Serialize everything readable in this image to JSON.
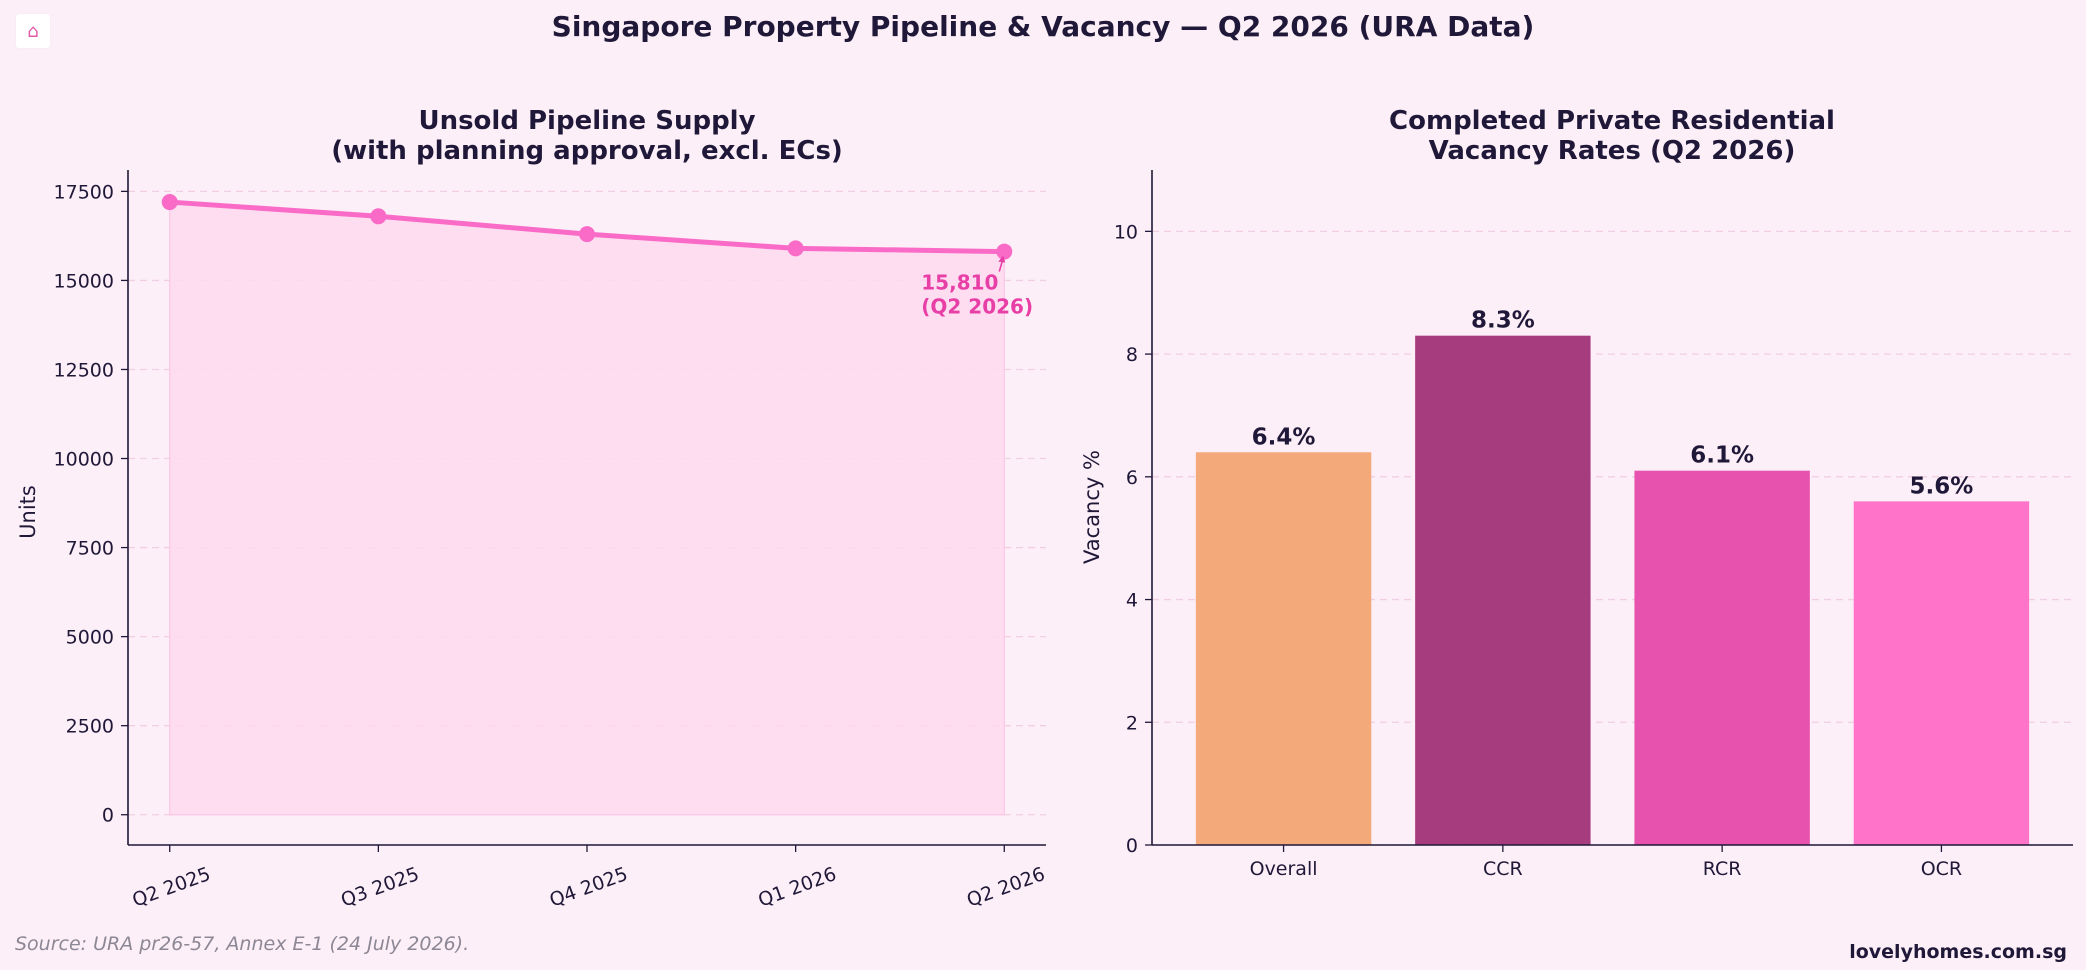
{
  "header": {
    "title": "Singapore Property Pipeline & Vacancy — Q2 2026 (URA Data)",
    "home_icon": "⌂"
  },
  "footer": {
    "source": "Source: URA pr26-57, Annex E-1 (24 July 2026).",
    "brand": "lovelyhomes.com.sg"
  },
  "colors": {
    "line": "#f96bc7",
    "fill": "#ffd9f0",
    "annotation": "#e83fa6",
    "grid": "#f0cfe3",
    "axis": "#1f1838"
  },
  "chart_data": [
    {
      "type": "area",
      "title_lines": [
        "Unsold Pipeline Supply",
        "(with planning approval, excl. ECs)"
      ],
      "xlabel": "",
      "ylabel": "Units",
      "categories": [
        "Q2 2025",
        "Q3 2025",
        "Q4 2025",
        "Q1 2026",
        "Q2 2026"
      ],
      "values": [
        17200,
        16800,
        16300,
        15900,
        15810
      ],
      "ylim": [
        -850,
        18100
      ],
      "yticks": [
        0,
        2500,
        5000,
        7500,
        10000,
        12500,
        15000,
        17500
      ],
      "grid": true,
      "annotation": {
        "lines": [
          "15,810",
          "(Q2 2026)"
        ],
        "target_index": 4
      }
    },
    {
      "type": "bar",
      "title_lines": [
        "Completed Private Residential",
        "Vacancy Rates (Q2 2026)"
      ],
      "xlabel": "",
      "ylabel": "Vacancy %",
      "categories": [
        "Overall",
        "CCR",
        "RCR",
        "OCR"
      ],
      "values": [
        6.4,
        8.3,
        6.1,
        5.6
      ],
      "value_labels": [
        "6.4%",
        "8.3%",
        "6.1%",
        "5.6%"
      ],
      "colors": [
        "#f4a97a",
        "#a63c7e",
        "#e652ae",
        "#ff73c8"
      ],
      "ylim": [
        0,
        11
      ],
      "yticks": [
        0,
        2,
        4,
        6,
        8,
        10
      ],
      "grid": true
    }
  ]
}
